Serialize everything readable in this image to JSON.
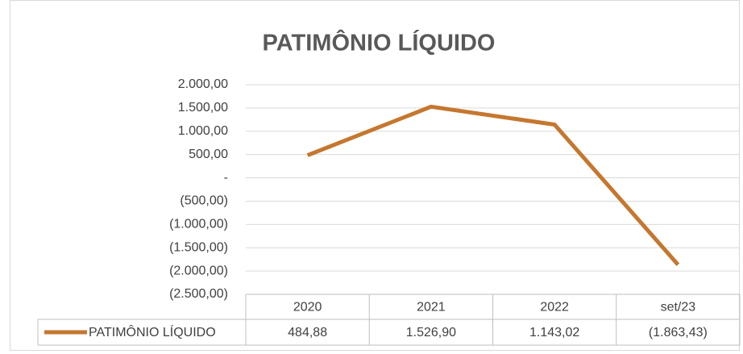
{
  "chart_data": {
    "type": "line",
    "title": "PATIMÔNIO LÍQUIDO",
    "categories": [
      "2020",
      "2021",
      "2022",
      "set/23"
    ],
    "series": [
      {
        "name": "PATIMÔNIO LÍQUIDO",
        "color": "#c5772f",
        "values": [
          484.88,
          1526.9,
          1143.02,
          -1863.43
        ],
        "value_labels": [
          "484,88",
          "1.526,90",
          "1.143,02",
          "(1.863,43)"
        ]
      }
    ],
    "ylim": [
      -2500,
      2000
    ],
    "yticks": [
      {
        "value": 2000,
        "label": "2.000,00"
      },
      {
        "value": 1500,
        "label": "1.500,00"
      },
      {
        "value": 1000,
        "label": "1.000,00"
      },
      {
        "value": 500,
        "label": "500,00"
      },
      {
        "value": 0,
        "label": "-"
      },
      {
        "value": -500,
        "label": "(500,00)"
      },
      {
        "value": -1000,
        "label": "(1.000,00)"
      },
      {
        "value": -1500,
        "label": "(1.500,00)"
      },
      {
        "value": -2000,
        "label": "(2.000,00)"
      },
      {
        "value": -2500,
        "label": "(2.500,00)"
      }
    ],
    "grid": true,
    "data_table": true
  }
}
